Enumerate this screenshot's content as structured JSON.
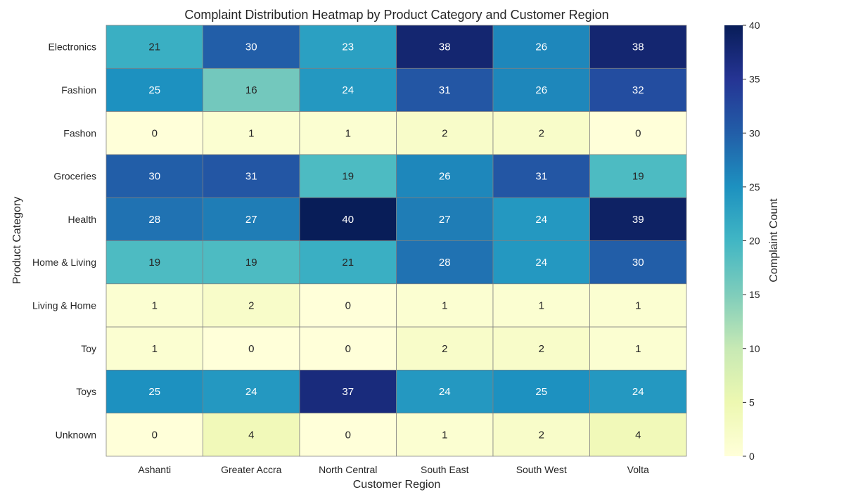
{
  "chart_data": {
    "type": "heatmap",
    "title": "Complaint Distribution Heatmap by Product Category and Customer Region",
    "xlabel": "Customer Region",
    "ylabel": "Product Category",
    "x_categories": [
      "Ashanti",
      "Greater Accra",
      "North Central",
      "South East",
      "South West",
      "Volta"
    ],
    "y_categories": [
      "Electronics",
      "Fashion",
      "Fashon",
      "Groceries",
      "Health",
      "Home & Living",
      "Living & Home",
      "Toy",
      "Toys",
      "Unknown"
    ],
    "values": [
      [
        21,
        30,
        23,
        38,
        26,
        38
      ],
      [
        25,
        16,
        24,
        31,
        26,
        32
      ],
      [
        0,
        1,
        1,
        2,
        2,
        0
      ],
      [
        30,
        31,
        19,
        26,
        31,
        19
      ],
      [
        28,
        27,
        40,
        27,
        24,
        39
      ],
      [
        19,
        19,
        21,
        28,
        24,
        30
      ],
      [
        1,
        2,
        0,
        1,
        1,
        1
      ],
      [
        1,
        0,
        0,
        2,
        2,
        1
      ],
      [
        25,
        24,
        37,
        24,
        25,
        24
      ],
      [
        0,
        4,
        0,
        1,
        2,
        4
      ]
    ],
    "colormap": "YlGnBu",
    "colorbar": {
      "label": "Complaint Count",
      "range": [
        0,
        40
      ],
      "ticks": [
        0,
        5,
        10,
        15,
        20,
        25,
        30,
        35,
        40
      ]
    },
    "annotated": true,
    "cell_border_color": "#808080"
  }
}
